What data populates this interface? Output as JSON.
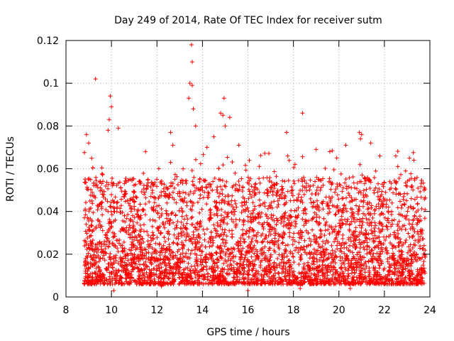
{
  "chart_data": {
    "type": "scatter",
    "title": "Day 249 of 2014, Rate Of TEC Index for receiver sutm",
    "xlabel": "GPS time / hours",
    "ylabel": "ROTI / TECUs",
    "xlim": [
      8,
      24
    ],
    "ylim": [
      0,
      0.12
    ],
    "x_ticks": [
      8,
      10,
      12,
      14,
      16,
      18,
      20,
      22,
      24
    ],
    "x_tick_labels": [
      "8",
      "10",
      "12",
      "14",
      "16",
      "18",
      "20",
      "22",
      "24"
    ],
    "y_ticks": [
      0,
      0.02,
      0.04,
      0.06,
      0.08,
      0.1,
      0.12
    ],
    "y_tick_labels": [
      "0",
      "0.02",
      "0.04",
      "0.06",
      "0.08",
      "0.1",
      "0.12"
    ],
    "grid": true,
    "marker": "plus",
    "marker_color": "#ff0000",
    "series": [
      {
        "name": "ROTI",
        "points": [
          [
            9.3,
            0.102
          ],
          [
            13.52,
            0.118
          ],
          [
            13.55,
            0.11
          ],
          [
            13.45,
            0.1
          ],
          [
            13.4,
            0.093
          ],
          [
            13.55,
            0.099
          ],
          [
            14.95,
            0.093
          ],
          [
            9.95,
            0.094
          ],
          [
            10.0,
            0.089
          ],
          [
            9.9,
            0.083
          ],
          [
            13.6,
            0.088
          ],
          [
            14.8,
            0.086
          ],
          [
            14.9,
            0.085
          ],
          [
            15.2,
            0.084
          ],
          [
            18.4,
            0.086
          ],
          [
            9.85,
            0.078
          ],
          [
            10.3,
            0.079
          ],
          [
            12.6,
            0.077
          ],
          [
            13.7,
            0.08
          ],
          [
            14.5,
            0.075
          ],
          [
            15.0,
            0.08
          ],
          [
            17.7,
            0.077
          ],
          [
            20.9,
            0.077
          ],
          [
            21.0,
            0.076
          ],
          [
            20.95,
            0.074
          ],
          [
            8.9,
            0.076
          ],
          [
            9.0,
            0.072
          ],
          [
            11.5,
            0.068
          ],
          [
            12.7,
            0.071
          ],
          [
            14.2,
            0.07
          ],
          [
            15.6,
            0.071
          ],
          [
            19.0,
            0.069
          ],
          [
            20.3,
            0.071
          ],
          [
            21.4,
            0.072
          ],
          [
            19.6,
            0.068
          ],
          [
            23.1,
            0.065
          ],
          [
            23.3,
            0.064
          ],
          [
            22.5,
            0.066
          ],
          [
            21.8,
            0.066
          ],
          [
            17.75,
            0.066
          ],
          [
            10.1,
            0.003
          ],
          [
            16.0,
            0.003
          ],
          [
            20.5,
            0.004
          ],
          [
            18.3,
            0.004
          ],
          [
            12.2,
            0.005
          ]
        ]
      }
    ]
  }
}
